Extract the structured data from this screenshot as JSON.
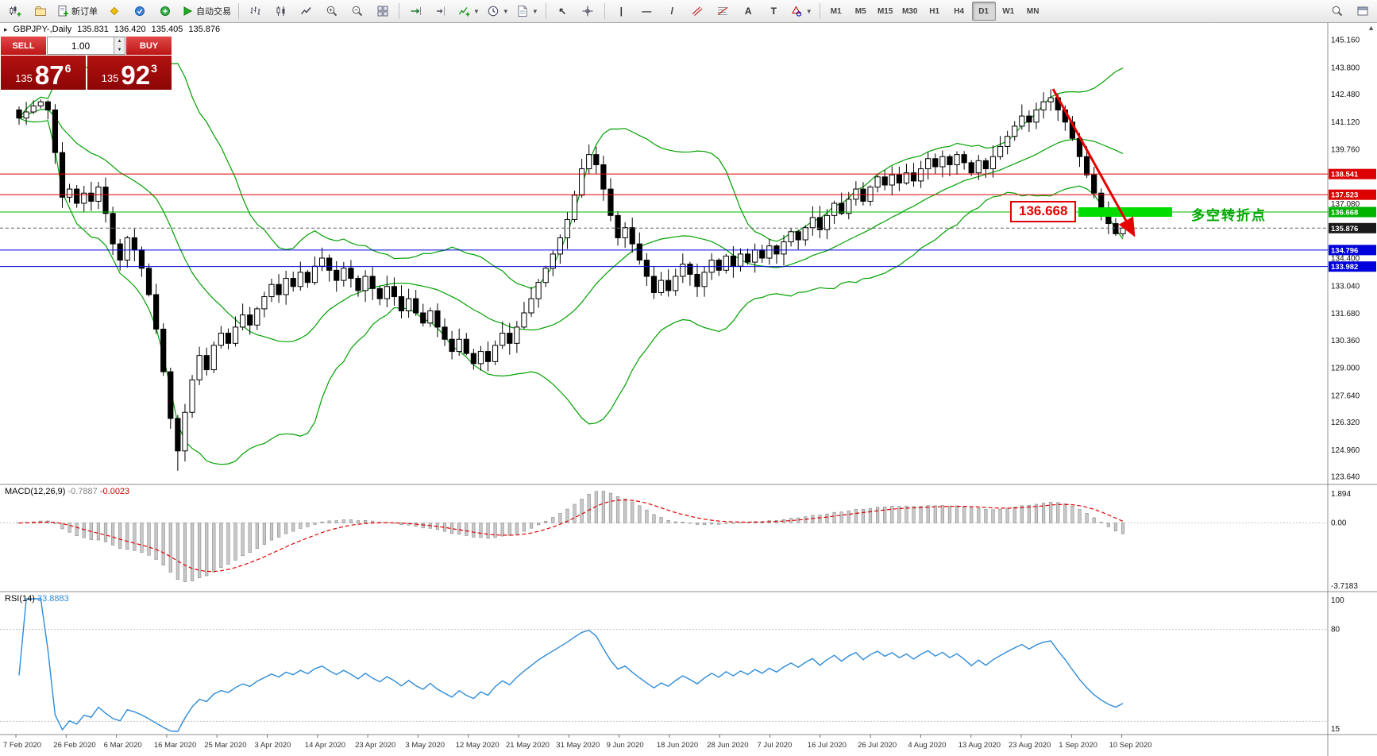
{
  "colors": {
    "bull": "#FFFFFF",
    "bear": "#000000",
    "bollinger": "#00A000",
    "resistance": "#DC0000",
    "support": "#0000DC",
    "level_green": "#00B400",
    "highlight": "#00DC00",
    "macd_histogram": "#C8C8C8",
    "macd_signal": "#E00000",
    "rsi_line": "#2E8BD8",
    "sell_button_red": "#C21616",
    "price_panel_red": "#9B0B0B"
  },
  "toolbar": {
    "active_timeframe": "D1",
    "items": [
      {
        "type": "icon",
        "name": "new-chart-button",
        "icon": "candles-plus"
      },
      {
        "type": "icon",
        "name": "profiles-button",
        "icon": "profiles"
      },
      {
        "type": "button",
        "name": "new-order-button",
        "icon": "order",
        "label": "新订单"
      },
      {
        "type": "icon",
        "name": "metaeditor-button",
        "icon": "diamond-yellow"
      },
      {
        "type": "icon",
        "name": "terminal-button",
        "icon": "circle-blue"
      },
      {
        "type": "icon",
        "name": "strategy-tester-button",
        "icon": "circle-green"
      },
      {
        "type": "button",
        "name": "autotrading-button",
        "icon": "play-green",
        "label": "自动交易"
      },
      {
        "type": "sep"
      },
      {
        "type": "icon",
        "name": "bar-chart-button",
        "icon": "bars"
      },
      {
        "type": "icon",
        "name": "candlestick-chart-button",
        "icon": "candles"
      },
      {
        "type": "icon",
        "name": "line-chart-button",
        "icon": "linechart"
      },
      {
        "type": "icon",
        "name": "zoom-in-button",
        "icon": "zoom-in"
      },
      {
        "type": "icon",
        "name": "zoom-out-button",
        "icon": "zoom-out"
      },
      {
        "type": "icon",
        "name": "tile-windows-button",
        "icon": "tile"
      },
      {
        "type": "sep"
      },
      {
        "type": "icon",
        "name": "auto-scroll-button",
        "icon": "autoscroll"
      },
      {
        "type": "icon",
        "name": "chart-shift-button",
        "icon": "chartshift"
      },
      {
        "type": "icon",
        "name": "indicators-button",
        "icon": "indicators",
        "dropdown": true
      },
      {
        "type": "icon",
        "name": "periods-button",
        "icon": "clock",
        "dropdown": true
      },
      {
        "type": "icon",
        "name": "templates-button",
        "icon": "template",
        "dropdown": true
      },
      {
        "type": "sep"
      },
      {
        "type": "glyph",
        "name": "cursor-button",
        "glyph": "↖"
      },
      {
        "type": "icon",
        "name": "crosshair-button",
        "icon": "crosshair"
      },
      {
        "type": "sep"
      },
      {
        "type": "glyph",
        "name": "vertical-line-button",
        "glyph": "|"
      },
      {
        "type": "glyph",
        "name": "horizontal-line-button",
        "glyph": "—"
      },
      {
        "type": "glyph",
        "name": "trendline-button",
        "glyph": "/"
      },
      {
        "type": "icon",
        "name": "channel-button",
        "icon": "channel"
      },
      {
        "type": "icon",
        "name": "fibonacci-button",
        "icon": "fibo"
      },
      {
        "type": "glyph",
        "name": "text-button",
        "glyph": "A"
      },
      {
        "type": "glyph",
        "name": "text-label-button",
        "glyph": "T"
      },
      {
        "type": "icon",
        "name": "shapes-button",
        "icon": "shapes",
        "dropdown": true
      },
      {
        "type": "sep"
      },
      {
        "type": "tf",
        "label": "M1"
      },
      {
        "type": "tf",
        "label": "M5"
      },
      {
        "type": "tf",
        "label": "M15"
      },
      {
        "type": "tf",
        "label": "M30"
      },
      {
        "type": "tf",
        "label": "H1"
      },
      {
        "type": "tf",
        "label": "H4"
      },
      {
        "type": "tf",
        "label": "D1"
      },
      {
        "type": "tf",
        "label": "W1"
      },
      {
        "type": "tf",
        "label": "MN"
      },
      {
        "type": "spacer"
      },
      {
        "type": "icon",
        "name": "search-button",
        "icon": "magnifier"
      },
      {
        "type": "icon",
        "name": "properties-button",
        "icon": "window"
      }
    ]
  },
  "chart_header": {
    "collapse_glyph": "▸",
    "scroll_glyph": "▲",
    "symbol_period": "GBPJPY-,Daily",
    "open": "135.831",
    "high": "136.420",
    "low": "135.405",
    "close": "135.876"
  },
  "trade_panel": {
    "sell_label": "SELL",
    "buy_label": "BUY",
    "volume": "1.00",
    "spin_up": "▲",
    "spin_down": "▼",
    "sell_price": {
      "prefix": "135",
      "big": "87",
      "sup": "6"
    },
    "buy_price": {
      "prefix": "135",
      "big": "92",
      "sup": "3"
    }
  },
  "annotations": {
    "level_callout": "136.668",
    "turning_point": "多空转折点"
  },
  "price_axis": {
    "labels": [
      145.16,
      143.8,
      142.48,
      141.12,
      139.76,
      137.08,
      134.4,
      133.04,
      131.68,
      130.36,
      129.0,
      127.64,
      126.32,
      124.96,
      123.64
    ]
  },
  "macd_panel": {
    "title": "MACD(12,26,9)",
    "value_main": "-0.7887",
    "value_signal": "-0.0023",
    "axis": [
      {
        "label": "1.894",
        "value": 1.894
      },
      {
        "label": "0.00",
        "value": 0
      },
      {
        "label": "-3.7183",
        "value": -3.7183
      }
    ]
  },
  "rsi_panel": {
    "title": "RSI(14)",
    "value": "33.8883",
    "axis": [
      {
        "label": "100",
        "value": 100
      },
      {
        "label": "80",
        "value": 80
      },
      {
        "label": "15",
        "value": 15
      }
    ],
    "levels": [
      80,
      20
    ]
  },
  "chart_data": {
    "type": "candlestick",
    "symbol": "GBPJPY",
    "timeframe": "Daily",
    "price_range": [
      123.64,
      145.16
    ],
    "last_price": 135.876,
    "indicators": [
      "Bollinger Bands(20,2)",
      "MACD(12,26,9)",
      "RSI(14)"
    ],
    "closes": [
      141.3,
      141.6,
      141.9,
      142.1,
      141.7,
      139.6,
      137.4,
      137.8,
      137.1,
      137.6,
      137.2,
      137.9,
      136.6,
      135.1,
      134.3,
      135.4,
      134.8,
      133.9,
      132.6,
      130.9,
      128.8,
      126.5,
      124.9,
      126.8,
      128.4,
      129.6,
      128.9,
      130.1,
      130.7,
      130.2,
      131.0,
      131.6,
      131.1,
      131.9,
      132.5,
      133.1,
      132.6,
      133.4,
      133.0,
      133.7,
      133.2,
      134.0,
      134.4,
      133.8,
      133.3,
      133.9,
      133.4,
      132.8,
      133.5,
      132.9,
      132.4,
      133.0,
      132.5,
      131.8,
      132.4,
      131.7,
      131.2,
      131.8,
      131.0,
      130.4,
      129.8,
      130.4,
      129.7,
      129.2,
      129.8,
      129.3,
      130.1,
      130.7,
      130.2,
      131.0,
      131.7,
      132.4,
      133.2,
      133.9,
      134.6,
      135.4,
      136.3,
      137.5,
      138.8,
      139.5,
      139.0,
      137.8,
      136.5,
      135.4,
      135.9,
      135.1,
      134.3,
      133.5,
      132.7,
      133.3,
      132.8,
      133.5,
      134.1,
      133.6,
      133.0,
      133.7,
      134.3,
      133.8,
      134.5,
      134.0,
      134.6,
      134.2,
      134.8,
      134.4,
      135.0,
      134.6,
      135.2,
      135.7,
      135.3,
      135.9,
      136.4,
      135.8,
      136.5,
      137.1,
      136.6,
      137.3,
      137.8,
      137.2,
      137.9,
      138.4,
      138.0,
      138.5,
      138.1,
      138.6,
      138.2,
      138.8,
      139.3,
      138.9,
      139.4,
      139.0,
      139.5,
      139.1,
      138.6,
      139.2,
      138.8,
      139.4,
      139.9,
      140.4,
      140.9,
      141.4,
      141.1,
      141.7,
      142.1,
      142.3,
      141.7,
      141.1,
      140.3,
      139.4,
      138.5,
      137.6,
      136.8,
      136.1,
      135.6,
      135.88
    ],
    "dates": [
      "7 Feb 2020",
      "26 Feb 2020",
      "6 Mar 2020",
      "16 Mar 2020",
      "25 Mar 2020",
      "3 Apr 2020",
      "14 Apr 2020",
      "23 Apr 2020",
      "3 May 2020",
      "12 May 2020",
      "21 May 2020",
      "31 May 2020",
      "9 Jun 2020",
      "18 Jun 2020",
      "28 Jun 2020",
      "7 Jul 2020",
      "16 Jul 2020",
      "26 Jul 2020",
      "4 Aug 2020",
      "13 Aug 2020",
      "23 Aug 2020",
      "1 Sep 2020",
      "10 Sep 2020"
    ],
    "h_lines": [
      {
        "price": 138.541,
        "color": "#DC0000",
        "label": "138.541"
      },
      {
        "price": 137.523,
        "color": "#DC0000",
        "label": "137.523"
      },
      {
        "price": 136.668,
        "color": "#00B400",
        "label": "136.668"
      },
      {
        "price": 134.796,
        "color": "#0000DC",
        "label": "134.796"
      },
      {
        "price": 133.982,
        "color": "#0000DC",
        "label": "133.982"
      }
    ],
    "current_price_tag": {
      "price": 135.876,
      "label": "135.876",
      "color": "#1A1A1A"
    },
    "highlight_zone": {
      "price": 136.668,
      "color": "#00DC00"
    }
  }
}
